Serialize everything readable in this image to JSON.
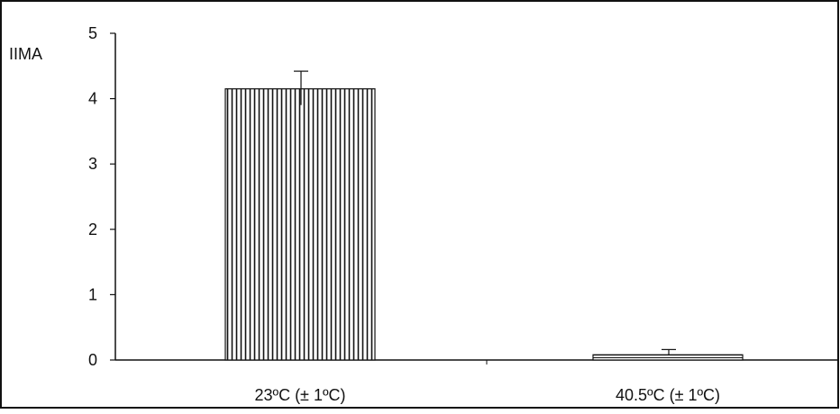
{
  "chart_data": {
    "type": "bar",
    "ylabel": "IIMA",
    "xlabel": "",
    "title": "",
    "categories": [
      "23ºC (± 1ºC)",
      "40.5ºC (± 1ºC)"
    ],
    "values": [
      4.15,
      0.08
    ],
    "error_upper": [
      0.27,
      0.08
    ],
    "ylim": [
      0,
      5
    ],
    "yticks": [
      "0",
      "1",
      "2",
      "3",
      "4",
      "5"
    ],
    "grid": false,
    "legend": "none",
    "bar_fill_patterns": [
      "vertical-stripes",
      "horizontal-stripes"
    ]
  },
  "colors": {
    "ink": "#111111",
    "background": "#ffffff"
  }
}
